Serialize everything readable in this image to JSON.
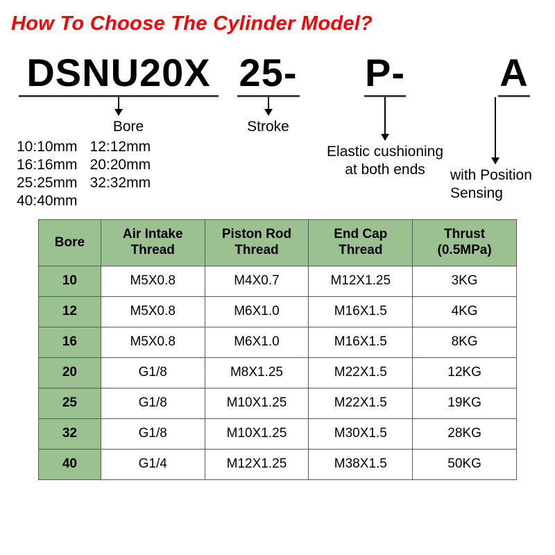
{
  "title": "How To Choose The Cylinder Model?",
  "model": {
    "seg1": {
      "code": "DSNU20X",
      "label": "Bore",
      "bore_options": [
        "10:10mm",
        "12:12mm",
        "16:16mm",
        "20:20mm",
        "25:25mm",
        "32:32mm",
        "40:40mm",
        ""
      ]
    },
    "seg2": {
      "code": "25-",
      "label": "Stroke"
    },
    "seg3": {
      "code": "P-",
      "label": "Elastic cushioning at both ends"
    },
    "seg4": {
      "code": "A",
      "label": "with Position Sensing"
    }
  },
  "table": {
    "header_bg": "#9bc191",
    "border_color": "#555a55",
    "columns": [
      "Bore",
      "Air Intake Thread",
      "Piston Rod Thread",
      "End Cap Thread",
      "Thrust (0.5MPa)"
    ],
    "rows": [
      [
        "10",
        "M5X0.8",
        "M4X0.7",
        "M12X1.25",
        "3KG"
      ],
      [
        "12",
        "M5X0.8",
        "M6X1.0",
        "M16X1.5",
        "4KG"
      ],
      [
        "16",
        "M5X0.8",
        "M6X1.0",
        "M16X1.5",
        "8KG"
      ],
      [
        "20",
        "G1/8",
        "M8X1.25",
        "M22X1.5",
        "12KG"
      ],
      [
        "25",
        "G1/8",
        "M10X1.25",
        "M22X1.5",
        "19KG"
      ],
      [
        "32",
        "G1/8",
        "M10X1.25",
        "M30X1.5",
        "28KG"
      ],
      [
        "40",
        "G1/4",
        "M12X1.25",
        "M38X1.5",
        "50KG"
      ]
    ]
  },
  "colors": {
    "title": "#ff0000",
    "text": "#000000",
    "bg": "#ffffff"
  },
  "fonts": {
    "title_size": 29,
    "code_size": 56,
    "label_size": 21,
    "table_size": 19
  }
}
